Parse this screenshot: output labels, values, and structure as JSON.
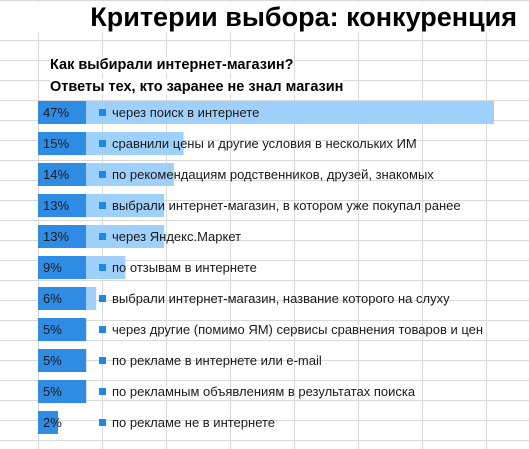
{
  "title": "Критерии выбора: конкуренция",
  "subtitle_1": "Как выбирали интернет-магазин?",
  "subtitle_2": "Ответы тех, кто заранее не знал магазин",
  "chart_data": {
    "type": "bar",
    "orientation": "horizontal",
    "categories": [
      "через поиск в интернете",
      "сравнили цены и другие условия в нескольких ИМ",
      "по рекомендациям родственников, друзей, знакомых",
      "выбрали интернет-магазин, в котором уже покупал ранее",
      "через Яндекс.Маркет",
      "по отзывам в интернете",
      "выбрали интернет-магазин, название которого на слуху",
      "через другие (помимо ЯМ) сервисы сравнения товаров и цен",
      "по рекламе в интернете или e-mail",
      "по рекламным объявлениям в результатах поиска",
      "по рекламе не в интернете"
    ],
    "values": [
      47,
      15,
      14,
      13,
      13,
      9,
      6,
      5,
      5,
      5,
      2
    ],
    "value_labels": [
      "47%",
      "15%",
      "14%",
      "13%",
      "13%",
      "9%",
      "6%",
      "5%",
      "5%",
      "5%",
      "2%"
    ],
    "xlim": [
      0,
      47
    ],
    "colors": {
      "bar": "#2f8ce5",
      "bar_light": "#9fd0fa",
      "marker": "#1e88e5",
      "label": "#1a1a1a"
    }
  }
}
